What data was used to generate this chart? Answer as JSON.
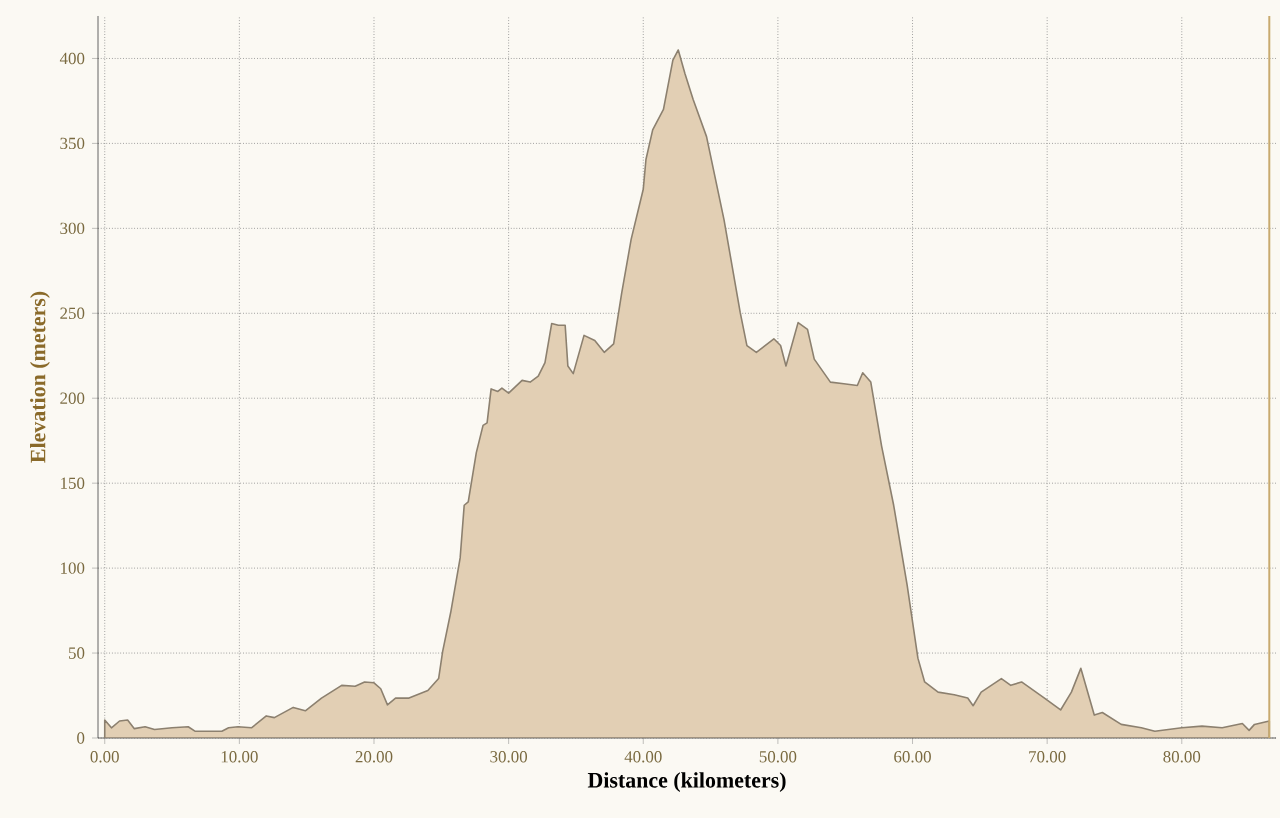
{
  "chart_data": {
    "type": "area",
    "xlabel": "Distance (kilometers)",
    "ylabel": "Elevation (meters)",
    "xlim": [
      -0.5,
      87
    ],
    "ylim": [
      0,
      425
    ],
    "xticks": [
      {
        "value": 0,
        "label": "0.00"
      },
      {
        "value": 10,
        "label": "10.00"
      },
      {
        "value": 20,
        "label": "20.00"
      },
      {
        "value": 30,
        "label": "30.00"
      },
      {
        "value": 40,
        "label": "40.00"
      },
      {
        "value": 50,
        "label": "50.00"
      },
      {
        "value": 60,
        "label": "60.00"
      },
      {
        "value": 70,
        "label": "70.00"
      },
      {
        "value": 80,
        "label": "80.00"
      }
    ],
    "yticks": [
      0,
      50,
      100,
      150,
      200,
      250,
      300,
      350,
      400
    ],
    "grid": true,
    "ref_lines": [
      {
        "axis": "x",
        "value": 86.5,
        "color": "#c8aa6e"
      }
    ],
    "series": [
      {
        "color": "#e2cfb4",
        "x": [
          0,
          0.5,
          1.1,
          1.7,
          2.2,
          3,
          3.7,
          5,
          6.2,
          6.7,
          8.7,
          9.2,
          9.9,
          10.9,
          12,
          12.6,
          14,
          14.9,
          16.1,
          17.6,
          18.6,
          19.3,
          20,
          20.5,
          21,
          21.6,
          22.6,
          24,
          24.8,
          25.1,
          25.7,
          26.4,
          26.7,
          27,
          27.6,
          28.1,
          28.4,
          28.7,
          29.2,
          29.5,
          30,
          31,
          31.6,
          32.2,
          32.7,
          33.2,
          33.7,
          34.2,
          34.4,
          34.8,
          35.6,
          36.4,
          37.1,
          37.8,
          38.4,
          39.1,
          40,
          40.2,
          40.7,
          41.5,
          42.2,
          42.6,
          43.1,
          43.7,
          44.7,
          46,
          47.2,
          47.7,
          48.4,
          49.7,
          50.2,
          50.6,
          51.5,
          52.2,
          52.7,
          53.9,
          54.9,
          55.9,
          56.3,
          56.9,
          57.7,
          58.6,
          59.6,
          60.4,
          60.9,
          61.9,
          63.1,
          64.1,
          64.5,
          65.1,
          66.6,
          67.3,
          68.1,
          69.8,
          71,
          71.8,
          72.5,
          73.5,
          74.1,
          75.5,
          77,
          78,
          80,
          81.5,
          83,
          84.5,
          85,
          85.4,
          86.5
        ],
        "values": [
          10.6,
          6,
          10,
          10.6,
          5.5,
          6.6,
          5,
          6,
          6.6,
          4,
          4,
          6,
          6.6,
          6,
          13,
          12,
          18,
          16,
          23.5,
          31,
          30.5,
          33,
          32.5,
          29,
          19.5,
          23.5,
          23.5,
          28,
          35,
          51,
          74,
          106,
          137,
          139,
          168,
          184,
          185.5,
          205.5,
          204,
          206,
          203,
          210.5,
          209.5,
          213,
          221,
          244,
          243,
          243,
          219,
          214.5,
          237,
          234,
          227,
          232,
          262,
          293.5,
          323,
          340.5,
          358,
          370,
          399,
          405,
          391,
          376,
          354,
          305,
          250.5,
          231,
          227,
          235,
          231,
          219,
          244.5,
          240.5,
          223,
          209.5,
          208.5,
          207.5,
          215,
          209.5,
          172,
          137,
          90,
          47,
          33,
          27,
          25.5,
          23.5,
          19,
          27,
          35,
          31,
          33,
          23.5,
          16.5,
          27,
          41,
          13.5,
          15,
          8,
          6,
          4,
          6,
          7,
          6,
          8.5,
          4.5,
          8,
          10
        ]
      }
    ]
  }
}
